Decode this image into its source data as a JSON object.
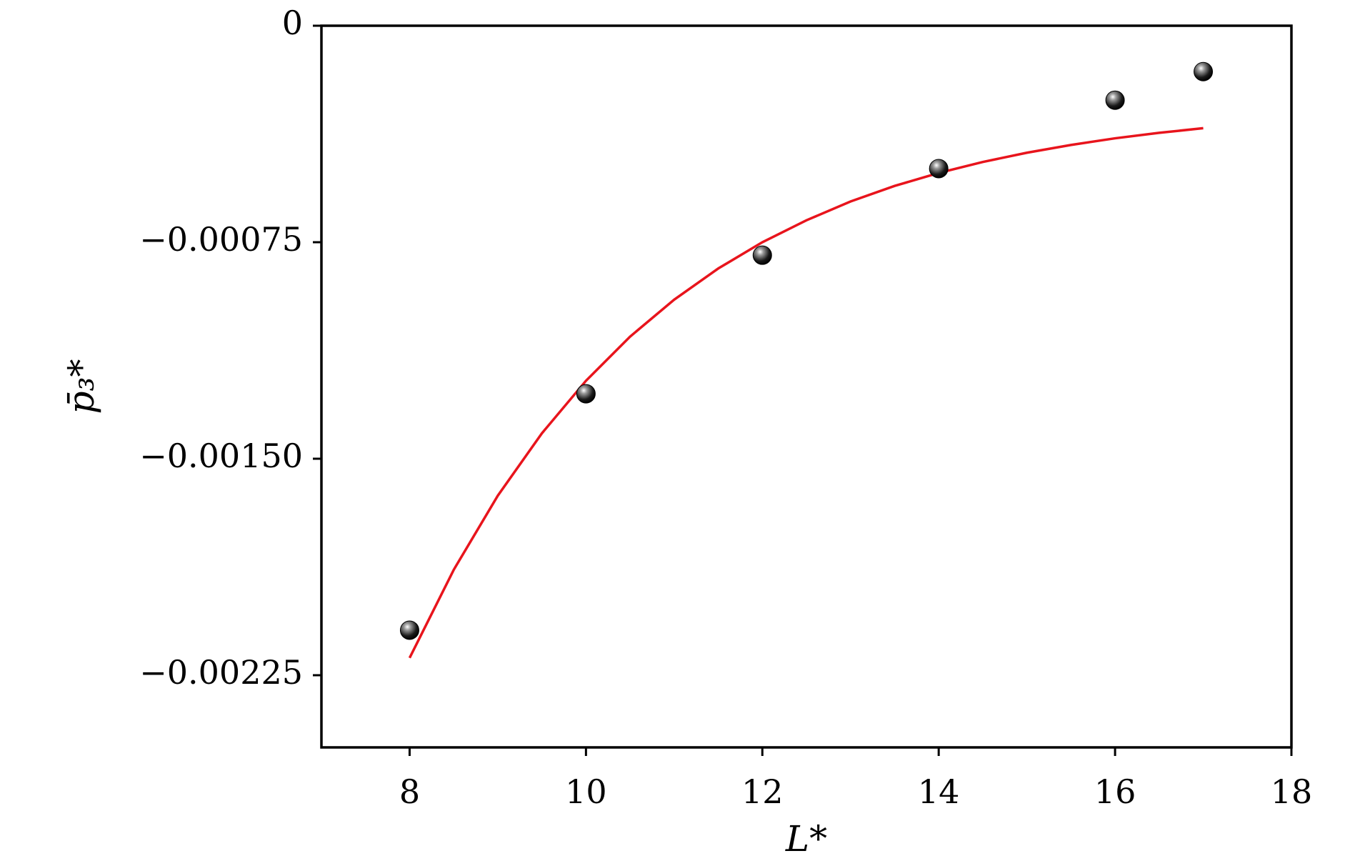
{
  "chart_data": {
    "type": "scatter",
    "xlabel": "L*",
    "ylabel": "p̄₃*",
    "xlim": [
      7,
      18
    ],
    "ylim": [
      -0.0025,
      0
    ],
    "xticks": [
      8,
      10,
      12,
      14,
      16,
      18
    ],
    "yticks": [
      {
        "value": -0.00225,
        "label": "−0.00225"
      },
      {
        "value": -0.0015,
        "label": "−0.00150"
      },
      {
        "value": -0.00075,
        "label": "−0.00075"
      },
      0
    ],
    "grid": false,
    "series": [
      {
        "type": "scatter",
        "color": "#000000",
        "x": [
          8,
          10,
          12,
          14,
          16,
          17
        ],
        "values": [
          -0.002094,
          -0.001275,
          -0.000795,
          -0.000495,
          -0.000258,
          -0.000159
        ]
      },
      {
        "type": "line",
        "color": "#e8141c",
        "x": [
          8,
          8.5,
          9,
          9.5,
          10,
          10.5,
          11,
          11.5,
          12,
          12.5,
          13,
          13.5,
          14,
          14.5,
          15,
          15.5,
          16,
          16.5,
          17
        ],
        "values": [
          -0.00219,
          -0.001885,
          -0.001628,
          -0.001412,
          -0.00123,
          -0.001077,
          -0.000949,
          -0.000841,
          -0.00075,
          -0.000674,
          -0.000609,
          -0.000555,
          -0.00051,
          -0.000472,
          -0.00044,
          -0.000413,
          -0.00039,
          -0.000371,
          -0.000355
        ]
      }
    ]
  }
}
